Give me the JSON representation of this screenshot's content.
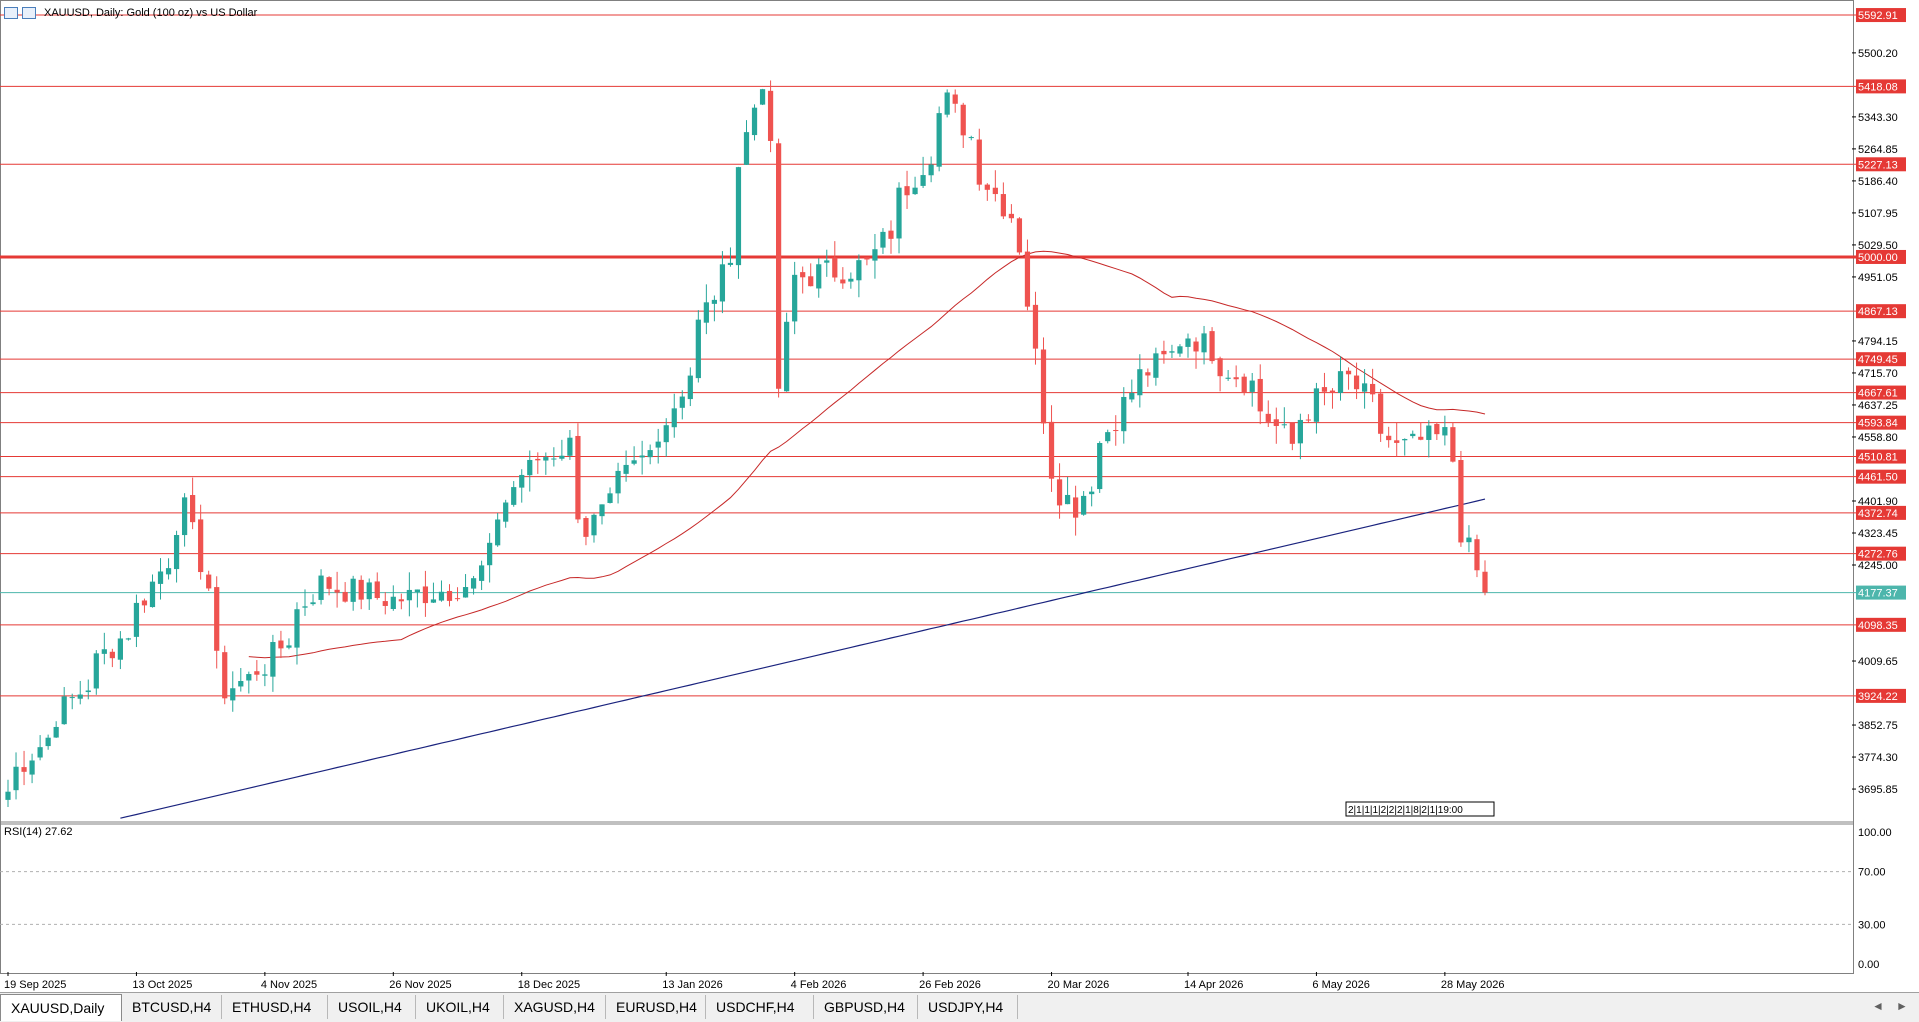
{
  "window": {
    "title": "XAUUSD, Daily:  Gold (100 oz) vs US Dollar"
  },
  "colors": {
    "bull": "#26a69a",
    "bear": "#ef5350",
    "hline": "#e53935",
    "ma_short": "#c62828",
    "ma_long": "#1a237e",
    "current_line": "#4db6ac",
    "rsi_line": "#4a90d9",
    "axis_text": "#000000"
  },
  "price_axis": {
    "ticks": [
      "5500.20",
      "5343.30",
      "5264.85",
      "5186.40",
      "5107.95",
      "5029.50",
      "4951.05",
      "4794.15",
      "4715.70",
      "4637.25",
      "4558.80",
      "4401.90",
      "4323.45",
      "4245.00",
      "4009.65",
      "3852.75",
      "3774.30",
      "3695.85"
    ],
    "levels": [
      "5592.91",
      "5418.08",
      "5227.13",
      "5000.00",
      "4867.13",
      "4749.45",
      "4667.61",
      "4593.84",
      "4510.81",
      "4461.50",
      "4372.74",
      "4272.76",
      "4098.35",
      "3924.22"
    ],
    "current_price": "4177.37"
  },
  "time_axis": {
    "labels": [
      "19 Sep 2025",
      "13 Oct 2025",
      "4 Nov 2025",
      "26 Nov 2025",
      "18 Dec 2025",
      "13 Jan 2026",
      "4 Feb 2026",
      "26 Feb 2026",
      "20 Mar 2026",
      "14 Apr 2026",
      "6 May 2026",
      "28 May 2026"
    ],
    "cursor_label": "2|1|1|1|2|2|2|1|8|2|1|19:00"
  },
  "rsi": {
    "label": "RSI(14) 27.62",
    "ticks": [
      "100.00",
      "70.00",
      "30.00",
      "0.00"
    ]
  },
  "tabs": [
    {
      "label": "XAUUSD,Daily",
      "active": true
    },
    {
      "label": "BTCUSD,H4",
      "active": false
    },
    {
      "label": "ETHUSD,H4",
      "active": false
    },
    {
      "label": "USOIL,H4",
      "active": false
    },
    {
      "label": "UKOIL,H4",
      "active": false
    },
    {
      "label": "XAGUSD,H4",
      "active": false
    },
    {
      "label": "EURUSD,H4",
      "active": false
    },
    {
      "label": "USDCHF,H4",
      "active": false
    },
    {
      "label": "GBPUSD,H4",
      "active": false
    },
    {
      "label": "USDJPY,H4",
      "active": false
    }
  ],
  "chart_data": [
    {
      "type": "candlestick",
      "title": "XAUUSD, Daily:  Gold (100 oz) vs US Dollar",
      "ylim": [
        3620,
        5620
      ],
      "x_start": "19 Sep 2025",
      "x_end": "4 Jun 2026",
      "approx_close_path": [
        {
          "date": "19 Sep 2025",
          "close": 3690
        },
        {
          "date": "13 Oct 2025",
          "close": 4140
        },
        {
          "date": "21 Oct 2025",
          "close": 4380
        },
        {
          "date": "28 Oct 2025",
          "close": 3940
        },
        {
          "date": "4 Nov 2025",
          "close": 4000
        },
        {
          "date": "13 Nov 2025",
          "close": 4200
        },
        {
          "date": "26 Nov 2025",
          "close": 4160
        },
        {
          "date": "10 Dec 2025",
          "close": 4200
        },
        {
          "date": "18 Dec 2025",
          "close": 4470
        },
        {
          "date": "26 Dec 2025",
          "close": 4540
        },
        {
          "date": "30 Dec 2025",
          "close": 4330
        },
        {
          "date": "13 Jan 2026",
          "close": 4600
        },
        {
          "date": "22 Jan 2026",
          "close": 4950
        },
        {
          "date": "29 Jan 2026",
          "close": 5440
        },
        {
          "date": "2 Feb 2026",
          "close": 4680
        },
        {
          "date": "4 Feb 2026",
          "close": 4950
        },
        {
          "date": "17 Feb 2026",
          "close": 4980
        },
        {
          "date": "26 Feb 2026",
          "close": 5230
        },
        {
          "date": "3 Mar 2026",
          "close": 5380
        },
        {
          "date": "10 Mar 2026",
          "close": 5180
        },
        {
          "date": "16 Mar 2026",
          "close": 5030
        },
        {
          "date": "20 Mar 2026",
          "close": 4480
        },
        {
          "date": "25 Mar 2026",
          "close": 4390
        },
        {
          "date": "3 Apr 2026",
          "close": 4670
        },
        {
          "date": "14 Apr 2026",
          "close": 4810
        },
        {
          "date": "24 Apr 2026",
          "close": 4690
        },
        {
          "date": "1 May 2026",
          "close": 4540
        },
        {
          "date": "6 May 2026",
          "close": 4650
        },
        {
          "date": "12 May 2026",
          "close": 4700
        },
        {
          "date": "20 May 2026",
          "close": 4530
        },
        {
          "date": "28 May 2026",
          "close": 4560
        },
        {
          "date": "1 Jun 2026",
          "close": 4330
        },
        {
          "date": "4 Jun 2026",
          "close": 4177.37
        }
      ],
      "indicators": {
        "ma_short_color": "red",
        "ma_long_color": "navy"
      },
      "grid": false
    },
    {
      "type": "line",
      "title": "RSI(14) 27.62",
      "ylim": [
        0,
        100
      ],
      "reference_levels": [
        70,
        30
      ],
      "latest": 27.62
    }
  ]
}
